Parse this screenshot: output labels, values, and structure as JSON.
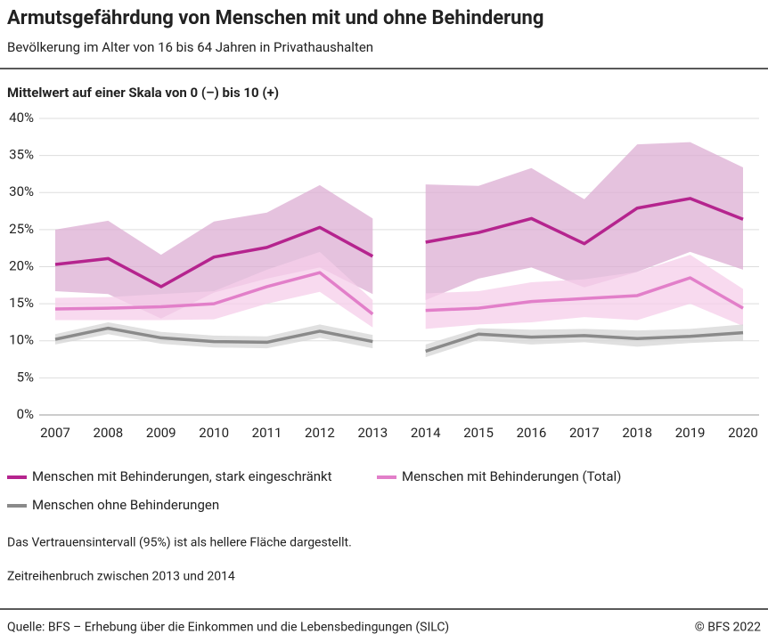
{
  "chart_data": {
    "type": "line",
    "title": "Armutsgefährdung von Menschen mit und ohne Behinderung",
    "subtitle": "Bevölkerung im Alter von 16 bis 64 Jahren in Privathaushalten",
    "y_label": "Mittelwert auf einer Skala von 0 (–) bis 10 (+)",
    "categories": [
      "2007",
      "2008",
      "2009",
      "2010",
      "2011",
      "2012",
      "2013",
      "2014",
      "2015",
      "2016",
      "2017",
      "2018",
      "2019",
      "2020"
    ],
    "break_after": 6,
    "ylim": [
      0,
      40
    ],
    "yticks": [
      {
        "value": 0,
        "label": "0%"
      },
      {
        "value": 5,
        "label": "5%"
      },
      {
        "value": 10,
        "label": "10%"
      },
      {
        "value": 15,
        "label": "15%"
      },
      {
        "value": 20,
        "label": "20%"
      },
      {
        "value": 25,
        "label": "25%"
      },
      {
        "value": 30,
        "label": "30%"
      },
      {
        "value": 35,
        "label": "35%"
      },
      {
        "value": 40,
        "label": "40%"
      }
    ],
    "grid": true,
    "series": [
      {
        "name": "Menschen mit Behinderungen, stark eingeschränkt",
        "color": "#b5248e",
        "band_color": "#dcaed3",
        "values": [
          20.3,
          21.1,
          17.3,
          21.3,
          22.6,
          25.3,
          21.4,
          23.3,
          24.6,
          26.5,
          23.1,
          27.9,
          29.2,
          26.4
        ],
        "upper": [
          25.0,
          26.2,
          21.6,
          26.1,
          27.3,
          31.0,
          26.5,
          31.1,
          30.9,
          33.3,
          29.1,
          36.5,
          36.8,
          33.4
        ],
        "lower": [
          16.7,
          16.3,
          13.0,
          16.5,
          18.4,
          19.9,
          16.3,
          15.5,
          18.4,
          19.9,
          17.2,
          19.3,
          22.0,
          19.6
        ]
      },
      {
        "name": "Menschen mit Behinderungen (Total)",
        "color": "#e27fc9",
        "band_color": "#f5cdea",
        "values": [
          14.3,
          14.4,
          14.6,
          15.0,
          17.3,
          19.2,
          13.6,
          14.1,
          14.4,
          15.3,
          15.7,
          16.1,
          18.5,
          14.4
        ],
        "upper": [
          15.8,
          15.9,
          16.3,
          16.7,
          19.6,
          22.0,
          15.5,
          16.4,
          16.7,
          17.9,
          18.3,
          19.3,
          21.6,
          17.0
        ],
        "lower": [
          12.8,
          12.8,
          12.8,
          12.9,
          15.0,
          16.6,
          11.8,
          11.6,
          12.2,
          12.5,
          13.2,
          12.8,
          15.0,
          12.0
        ]
      },
      {
        "name": "Menschen ohne Behinderungen",
        "color": "#8a8a8a",
        "band_color": "#d6d6d6",
        "values": [
          10.2,
          11.7,
          10.4,
          9.9,
          9.8,
          11.3,
          9.9,
          8.6,
          10.9,
          10.5,
          10.7,
          10.3,
          10.6,
          11.1
        ],
        "upper": [
          10.9,
          12.5,
          11.2,
          10.7,
          10.6,
          12.2,
          10.8,
          9.5,
          11.7,
          11.5,
          11.6,
          11.4,
          11.6,
          12.2
        ],
        "lower": [
          9.5,
          10.9,
          9.6,
          9.1,
          9.0,
          10.4,
          9.0,
          7.8,
          10.1,
          9.5,
          9.8,
          9.2,
          9.7,
          10.0
        ]
      }
    ],
    "notes": [
      "Das Vertrauensintervall (95%) ist als hellere Fläche dargestellt.",
      "Zeitreihenbruch zwischen 2013 und 2014"
    ],
    "source": "Quelle: BFS – Erhebung über die Einkommen und die Lebensbedingungen (SILC)",
    "copyright": "© BFS 2022"
  }
}
